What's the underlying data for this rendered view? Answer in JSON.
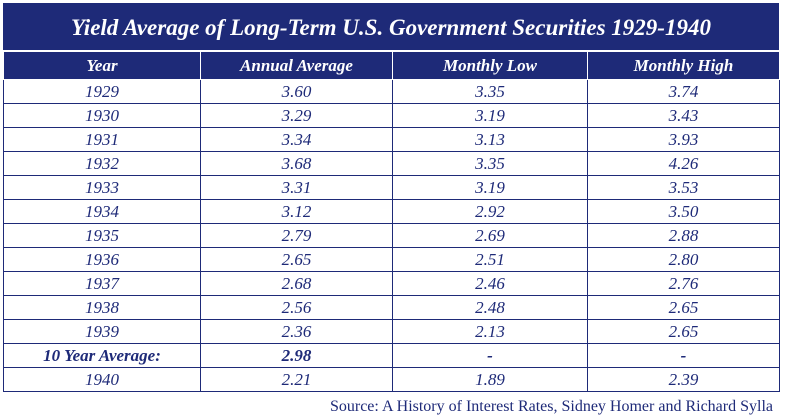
{
  "title": "Yield Average of Long-Term U.S. Government Securities 1929-1940",
  "headers": [
    "Year",
    "Annual Average",
    "Monthly Low",
    "Monthly High"
  ],
  "rows": [
    [
      "1929",
      "3.60",
      "3.35",
      "3.74"
    ],
    [
      "1930",
      "3.29",
      "3.19",
      "3.43"
    ],
    [
      "1931",
      "3.34",
      "3.13",
      "3.93"
    ],
    [
      "1932",
      "3.68",
      "3.35",
      "4.26"
    ],
    [
      "1933",
      "3.31",
      "3.19",
      "3.53"
    ],
    [
      "1934",
      "3.12",
      "2.92",
      "3.50"
    ],
    [
      "1935",
      "2.79",
      "2.69",
      "2.88"
    ],
    [
      "1936",
      "2.65",
      "2.51",
      "2.80"
    ],
    [
      "1937",
      "2.68",
      "2.46",
      "2.76"
    ],
    [
      "1938",
      "2.56",
      "2.48",
      "2.65"
    ],
    [
      "1939",
      "2.36",
      "2.13",
      "2.65"
    ],
    [
      "10 Year Average:",
      "2.98",
      "-",
      "-"
    ],
    [
      "1940",
      "2.21",
      "1.89",
      "2.39"
    ]
  ],
  "source": "Source: A History of Interest Rates, Sidney Homer and Richard Sylla",
  "colors": {
    "header_bg": "#1e2a78",
    "text": "#1e2a78"
  }
}
